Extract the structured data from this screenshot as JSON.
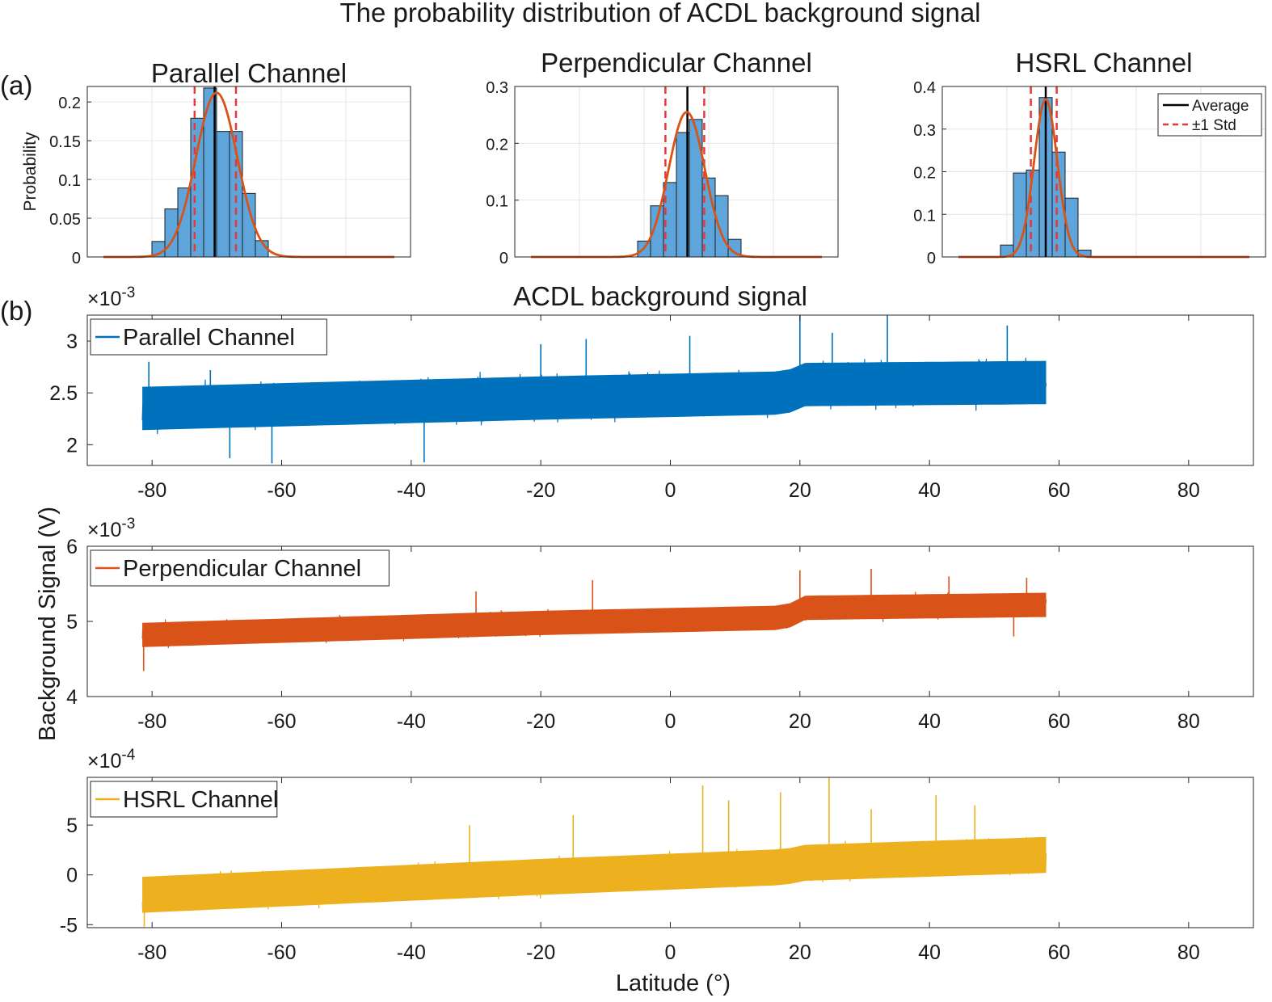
{
  "figure": {
    "title": "The probability distribution of ACDL background signal",
    "panel_a_label": "(a)",
    "panel_b_label": "(b)",
    "panel_b_title": "ACDL background signal",
    "shared_ylabel": "Background Signal (V)",
    "shared_xlabel": "Latitude (°)"
  },
  "colors": {
    "parallel": "#0072BD",
    "perpendicular": "#D95319",
    "hsrl": "#EDB120",
    "hist_bar": "#5DA5DA",
    "fit_curve": "#D95319",
    "average_line": "#000000",
    "std_line": "#E8373A",
    "grid": "#E6E6E6",
    "axis": "#262626"
  },
  "chart_data": [
    {
      "id": "hist-parallel",
      "type": "bar",
      "title": "Parallel Channel",
      "ylabel": "Probability",
      "ylim": [
        0,
        0.22
      ],
      "yticks": [
        0,
        0.05,
        0.1,
        0.15,
        0.2
      ],
      "ytick_labels": [
        "0",
        "0.05",
        "0.1",
        "0.15",
        "0.2"
      ],
      "x_bin_edges": [
        -79,
        -77,
        -75,
        -73,
        -71,
        -69,
        -67,
        -65,
        -63,
        -61
      ],
      "values": [
        0.02,
        0.062,
        0.089,
        0.179,
        0.218,
        0.162,
        0.162,
        0.082,
        0.021
      ],
      "average_x": -69.3,
      "std_x": [
        -72.4,
        -66.0
      ],
      "fit_curve": {
        "mean": -69.0,
        "sigma": 3.2,
        "peak": 0.212
      },
      "xlim": [
        -89,
        -39
      ],
      "grid": true
    },
    {
      "id": "hist-perpendicular",
      "type": "bar",
      "title": "Perpendicular Channel",
      "ylabel": "",
      "ylim": [
        0,
        0.3
      ],
      "yticks": [
        0,
        0.1,
        0.2,
        0.3
      ],
      "ytick_labels": [
        "0",
        "0.1",
        "0.2",
        "0.3"
      ],
      "x_bin_edges": [
        -70,
        -68,
        -66,
        -64,
        -62,
        -60,
        -58,
        -56,
        -54
      ],
      "values": [
        0.028,
        0.09,
        0.131,
        0.219,
        0.242,
        0.139,
        0.108,
        0.031
      ],
      "average_x": -62.3,
      "std_x": [
        -65.7,
        -59.7
      ],
      "fit_curve": {
        "mean": -62.4,
        "sigma": 2.8,
        "peak": 0.255
      },
      "xlim": [
        -89,
        -39
      ],
      "grid": true
    },
    {
      "id": "hist-hsrl",
      "type": "bar",
      "title": "HSRL Channel",
      "ylabel": "",
      "ylim": [
        0,
        0.4
      ],
      "yticks": [
        0,
        0.1,
        0.2,
        0.3,
        0.4
      ],
      "ytick_labels": [
        "0",
        "0.1",
        "0.2",
        "0.3",
        "0.4"
      ],
      "x_bin_edges": [
        -80,
        -78,
        -76,
        -74,
        -72,
        -70,
        -68,
        -66
      ],
      "values": [
        0.028,
        0.197,
        0.204,
        0.374,
        0.246,
        0.138,
        0.016
      ],
      "average_x": -73.0,
      "std_x": [
        -75.3,
        -71.3
      ],
      "fit_curve": {
        "mean": -73.0,
        "sigma": 1.8,
        "peak": 0.37
      },
      "xlim": [
        -89,
        -39
      ],
      "grid": true,
      "legend": {
        "placement": "top-right",
        "entries": [
          "Average",
          "±1 Std"
        ]
      }
    },
    {
      "id": "series-parallel",
      "type": "line",
      "legend_entry": "Parallel Channel",
      "exponent_label": "×10",
      "exponent_power": "-3",
      "xlim": [
        -90,
        90
      ],
      "ylim": [
        1.8,
        3.25
      ],
      "xticks": [
        -80,
        -60,
        -40,
        -20,
        0,
        20,
        40,
        60,
        80
      ],
      "yticks": [
        2,
        2.5,
        3
      ],
      "ytick_labels": [
        "2",
        "2.5",
        "3"
      ],
      "x_range": [
        -81.5,
        58
      ],
      "trend": [
        [
          -81.5,
          2.35
        ],
        [
          -20,
          2.45
        ],
        [
          18,
          2.5
        ],
        [
          20,
          2.58
        ],
        [
          58,
          2.6
        ]
      ],
      "band_halfwidth": 0.22,
      "spikes": [
        [
          -80.5,
          2.8
        ],
        [
          -71,
          2.72
        ],
        [
          -68,
          1.87
        ],
        [
          -38,
          1.83
        ],
        [
          -20,
          2.97
        ],
        [
          -13,
          3.02
        ],
        [
          3,
          3.05
        ],
        [
          20,
          3.25
        ],
        [
          25,
          3.08
        ],
        [
          33.5,
          3.28
        ],
        [
          -61.5,
          1.82
        ],
        [
          52,
          3.15
        ]
      ],
      "legend_placement": "top-left",
      "grid": false
    },
    {
      "id": "series-perpendicular",
      "type": "line",
      "legend_entry": "Perpendicular Channel",
      "exponent_label": "×10",
      "exponent_power": "-3",
      "xlim": [
        -90,
        90
      ],
      "ylim": [
        4,
        6
      ],
      "xticks": [
        -80,
        -60,
        -40,
        -20,
        0,
        20,
        40,
        60,
        80
      ],
      "yticks": [
        4,
        5,
        6
      ],
      "ytick_labels": [
        "4",
        "5",
        "6"
      ],
      "x_range": [
        -81.5,
        58
      ],
      "trend": [
        [
          -81.5,
          4.82
        ],
        [
          -20,
          4.98
        ],
        [
          18,
          5.05
        ],
        [
          20,
          5.18
        ],
        [
          58,
          5.22
        ]
      ],
      "band_halfwidth": 0.17,
      "spikes": [
        [
          -81.3,
          4.34
        ],
        [
          -30,
          5.4
        ],
        [
          -12,
          5.55
        ],
        [
          20,
          5.68
        ],
        [
          31,
          5.7
        ],
        [
          43,
          5.6
        ],
        [
          55,
          5.58
        ],
        [
          53,
          4.8
        ]
      ],
      "legend_placement": "top-left",
      "grid": false
    },
    {
      "id": "series-hsrl",
      "type": "line",
      "legend_entry": "HSRL Channel",
      "exponent_label": "×10",
      "exponent_power": "-4",
      "xlim": [
        -90,
        90
      ],
      "ylim": [
        -5.3,
        9.8
      ],
      "xticks": [
        -80,
        -60,
        -40,
        -20,
        0,
        20,
        40,
        60,
        80
      ],
      "yticks": [
        -5,
        0,
        5
      ],
      "ytick_labels": [
        "-5",
        "0",
        "5"
      ],
      "x_range": [
        -81.5,
        58
      ],
      "trend": [
        [
          -81.5,
          -2.0
        ],
        [
          -20,
          -0.2
        ],
        [
          18,
          0.8
        ],
        [
          20,
          1.2
        ],
        [
          58,
          2.0
        ]
      ],
      "band_halfwidth": 1.9,
      "spikes": [
        [
          -81.2,
          -5.2
        ],
        [
          -31,
          5.0
        ],
        [
          -15,
          6.0
        ],
        [
          5,
          9.0
        ],
        [
          9,
          7.5
        ],
        [
          17,
          8.3
        ],
        [
          24.5,
          9.9
        ],
        [
          41,
          8.0
        ],
        [
          47,
          7.0
        ],
        [
          31,
          6.6
        ]
      ],
      "xlabel": "Latitude (°)",
      "legend_placement": "top-left",
      "grid": false
    }
  ]
}
